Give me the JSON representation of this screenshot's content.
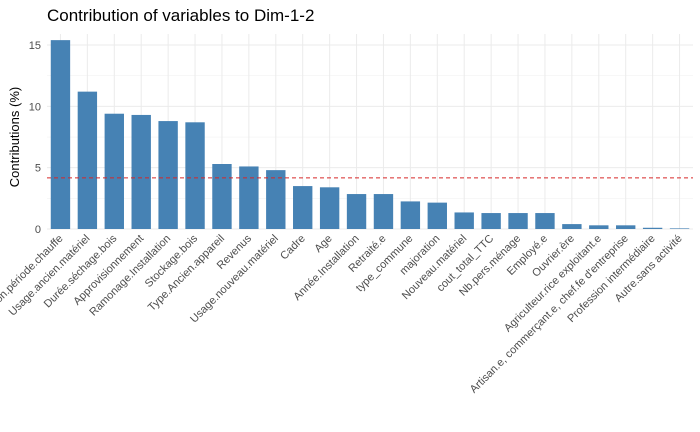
{
  "chart_data": {
    "type": "bar",
    "title": "Contribution of variables to Dim-1-2",
    "xlabel": "",
    "ylabel": "Contributions (%)",
    "ylim": [
      0,
      15.9
    ],
    "yticks": [
      0,
      5,
      10,
      15
    ],
    "grid": true,
    "bar_color": "#4682B4",
    "reference_line": {
      "value": 4.17,
      "style": "dashed",
      "color": "#D62728"
    },
    "categories": [
      "Raison.période.chauffe",
      "Usage.ancien.matériel",
      "Durée.séchage.bois",
      "Approvisionnement",
      "Ramonage.Installation",
      "Stockage.bois",
      "Type.Ancien.appareil",
      "Revenus",
      "Usage.nouveau.matériel",
      "Cadre",
      "Age",
      "Année.Installation",
      "Retraité.e",
      "type_commune",
      "majoration",
      "Nouveau.matériel",
      "cout_total_TTC",
      "Nb.pers.ménage",
      "Employé.e",
      "Ouvrier.ère",
      "Agriculteur.rice exploitant.e",
      "Artisan.e, commerçant.e, chef.fe d'entreprise",
      "Profession intermédiaire",
      "Autre.sans activité"
    ],
    "values": [
      15.4,
      11.2,
      9.4,
      9.3,
      8.8,
      8.7,
      5.3,
      5.1,
      4.8,
      3.5,
      3.4,
      2.85,
      2.85,
      2.25,
      2.15,
      1.35,
      1.3,
      1.3,
      1.3,
      0.4,
      0.3,
      0.3,
      0.1,
      0.05
    ]
  }
}
